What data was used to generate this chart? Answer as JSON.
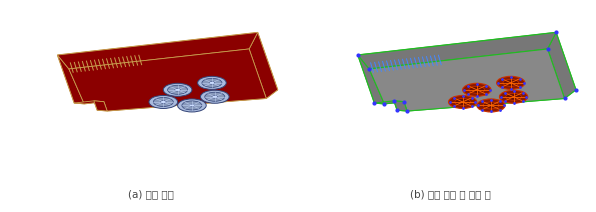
{
  "fig_width": 5.96,
  "fig_height": 2.12,
  "dpi": 100,
  "bg_color": "#ffffff",
  "caption_a": "(a) 객체 선택",
  "caption_b": "(b) 객체 내부 면 선택 후",
  "caption_color": "#444444",
  "caption_fontsize": 7.5,
  "left_image": {
    "bg": "#00008B",
    "top_face_color": "#8B0000",
    "wall_color": "#8B0000",
    "edge_color": "#C8A050",
    "comb_color": "#C8A050",
    "notch_color": "#8B0000",
    "circle_outer_color": "#AABBDD",
    "circle_inner_color": "#8899BB",
    "circle_edge_color": "#334477",
    "circle_spoke_color": "#CCDDFF",
    "comb_lines": 18,
    "n_circles": 5
  },
  "right_image": {
    "bg": "#00008B",
    "top_face_color": "#888888",
    "wall_color": "#777777",
    "edge_color": "#22BB22",
    "comb_color": "#4488FF",
    "notch_color": "#777777",
    "circle_outer_color": "#8B1A00",
    "circle_inner_color": "#6B1000",
    "circle_edge_color": "#CC3300",
    "circle_spoke_color": "#FF6600",
    "dot_color": "#3333FF",
    "comb_lines": 18,
    "n_circles": 5
  }
}
